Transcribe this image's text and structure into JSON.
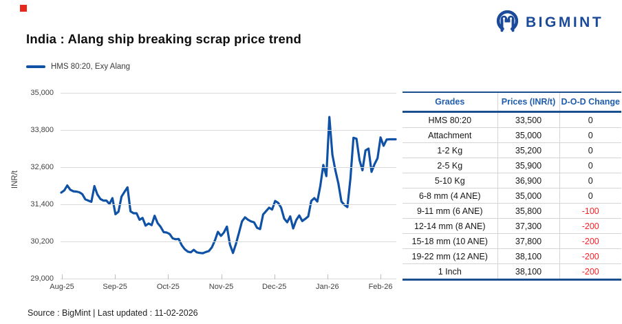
{
  "colors": {
    "brand_blue": "#1B4A9B",
    "line_blue": "#0F52A5",
    "header_blue": "#1E5CAD",
    "border_blue": "#1B4E8F",
    "negative_red": "#FB1E24",
    "gridline_gray": "#D9D9D9",
    "marker_red": "#E8271C"
  },
  "header": {
    "logo_text": "BIGMINT",
    "title": "India : Alang ship breaking scrap price trend"
  },
  "legend": {
    "label": "HMS 80:20, Exy Alang"
  },
  "chart_data": {
    "type": "line",
    "title": "India : Alang ship breaking scrap price trend",
    "ylabel": "INR/t",
    "xlabel": "",
    "ylim": [
      29000,
      35000
    ],
    "y_ticks": [
      29000,
      30200,
      31400,
      32600,
      33800,
      35000
    ],
    "x_tick_labels": [
      "Aug-25",
      "Sep-25",
      "Oct-25",
      "Nov-25",
      "Dec-25",
      "Jan-26",
      "Feb-26"
    ],
    "grid": "horizontal",
    "legend_position": "top-left",
    "series": [
      {
        "name": "HMS 80:20, Exy Alang",
        "color": "#0F52A5",
        "values": [
          31780,
          31850,
          32010,
          31870,
          31820,
          31810,
          31790,
          31730,
          31560,
          31520,
          31480,
          31990,
          31720,
          31570,
          31520,
          31520,
          31410,
          31600,
          31080,
          31160,
          31650,
          31800,
          31950,
          31170,
          31110,
          31110,
          30900,
          30960,
          30710,
          30780,
          30730,
          31030,
          30790,
          30670,
          30500,
          30490,
          30440,
          30300,
          30270,
          30280,
          30080,
          29950,
          29870,
          29850,
          29930,
          29850,
          29830,
          29820,
          29860,
          29890,
          30010,
          30230,
          30510,
          30380,
          30490,
          30680,
          30100,
          29830,
          30120,
          30480,
          30850,
          30980,
          30900,
          30850,
          30820,
          30640,
          30600,
          31070,
          31180,
          31290,
          31230,
          31510,
          31450,
          31290,
          30940,
          30820,
          31010,
          30620,
          30890,
          31040,
          30860,
          30930,
          31010,
          31510,
          31600,
          31490,
          31990,
          32670,
          32310,
          34220,
          33000,
          32500,
          32070,
          31490,
          31380,
          31310,
          32230,
          33550,
          33520,
          32830,
          32500,
          33140,
          33200,
          32450,
          32700,
          32890,
          33560,
          33290,
          33490,
          33500,
          33500,
          33500
        ]
      }
    ]
  },
  "table": {
    "headers": [
      "Grades",
      "Prices (INR/t)",
      "D-O-D Change"
    ],
    "rows": [
      [
        "HMS 80:20",
        "33,500",
        "0"
      ],
      [
        "Attachment",
        "35,000",
        "0"
      ],
      [
        "1-2 Kg",
        "35,200",
        "0"
      ],
      [
        "2-5 Kg",
        "35,900",
        "0"
      ],
      [
        "5-10 Kg",
        "36,900",
        "0"
      ],
      [
        "6-8 mm (4 ANE)",
        "35,000",
        "0"
      ],
      [
        "9-11 mm (6 ANE)",
        "35,800",
        "-100"
      ],
      [
        "12-14 mm (8 ANE)",
        "37,300",
        "-200"
      ],
      [
        "15-18 mm (10 ANE)",
        "37,800",
        "-200"
      ],
      [
        "19-22 mm (12 ANE)",
        "38,100",
        "-200"
      ],
      [
        "1 Inch",
        "38,100",
        "-200"
      ]
    ]
  },
  "footer": {
    "text": "Source : BigMint | Last updated : 11-02-2026"
  }
}
